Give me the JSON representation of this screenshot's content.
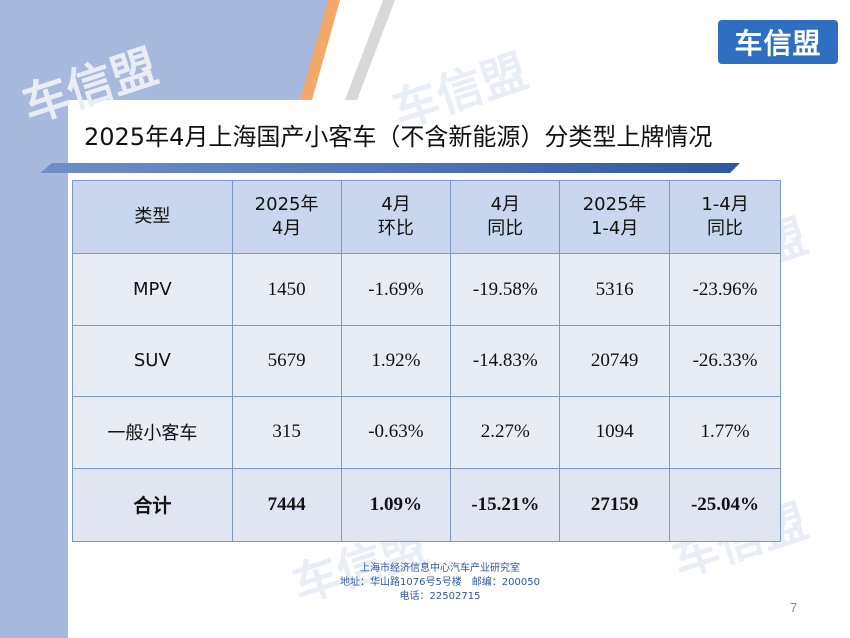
{
  "logo": {
    "text": "车信盟"
  },
  "title": "2025年4月上海国产小客车（不含新能源）分类型上牌情况",
  "table": {
    "headers": [
      [
        "类型",
        ""
      ],
      [
        "2025年",
        "4月"
      ],
      [
        "4月",
        "环比"
      ],
      [
        "4月",
        "同比"
      ],
      [
        "2025年",
        "1-4月"
      ],
      [
        "1-4月",
        "同比"
      ]
    ],
    "rows": [
      [
        "MPV",
        "1450",
        "-1.69%",
        "-19.58%",
        "5316",
        "-23.96%"
      ],
      [
        "SUV",
        "5679",
        "1.92%",
        "-14.83%",
        "20749",
        "-26.33%"
      ],
      [
        "一般小客车",
        "315",
        "-0.63%",
        "2.27%",
        "1094",
        "1.77%"
      ]
    ],
    "total": [
      "合计",
      "7444",
      "1.09%",
      "-15.21%",
      "27159",
      "-25.04%"
    ]
  },
  "footer": {
    "line1": "上海市经济信息中心汽车产业研究室",
    "line2": "地址：华山路1076号5号楼　邮编：200050",
    "line3": "电话：22502715"
  },
  "page_number": "7",
  "watermark": "车信盟",
  "colors": {
    "accent_blue": "#2f6fc1",
    "side_band": "#a7b9dc",
    "header_fill": "#c9d7ee",
    "row_fill": "#e7ecf5",
    "orange_stripe": "#f2a96a"
  }
}
